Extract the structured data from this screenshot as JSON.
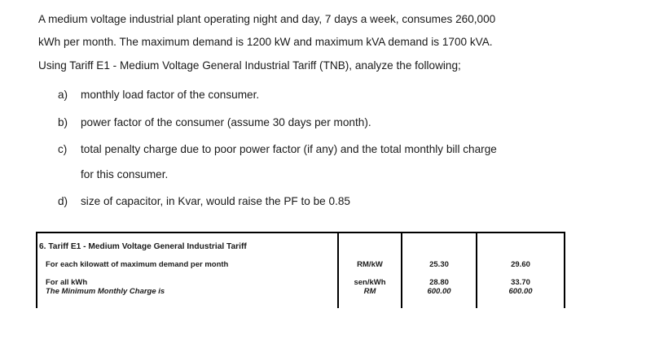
{
  "problem": {
    "lines": [
      "A medium voltage industrial plant operating night and day, 7 days a week, consumes 260,000",
      "kWh per month. The maximum demand is 1200 kW and maximum kVA demand is 1700 kVA.",
      "Using Tariff E1 - Medium Voltage General Industrial Tariff (TNB), analyze the following;"
    ],
    "items": [
      {
        "label": "a)",
        "text": "monthly load factor of the consumer."
      },
      {
        "label": "b)",
        "text": "power factor of the consumer (assume 30 days per month)."
      },
      {
        "label": "c)",
        "text": "total penalty charge due to poor power factor (if any) and the total monthly bill charge",
        "continuation": "for this consumer."
      },
      {
        "label": "d)",
        "text": "size of capacitor, in Kvar, would raise the PF to be 0.85"
      }
    ]
  },
  "tariff_table": {
    "title": "6. Tariff E1 - Medium Voltage General Industrial Tariff",
    "rows": [
      {
        "desc": "For each kilowatt of maximum demand per month",
        "unit": "RM/kW",
        "val1": "25.30",
        "val2": "29.60"
      },
      {
        "desc": "For all kWh",
        "unit": "sen/kWh",
        "val1": "28.80",
        "val2": "33.70"
      },
      {
        "desc": "The Minimum Monthly Charge is",
        "unit": "RM",
        "val1": "600.00",
        "val2": "600.00"
      }
    ]
  }
}
